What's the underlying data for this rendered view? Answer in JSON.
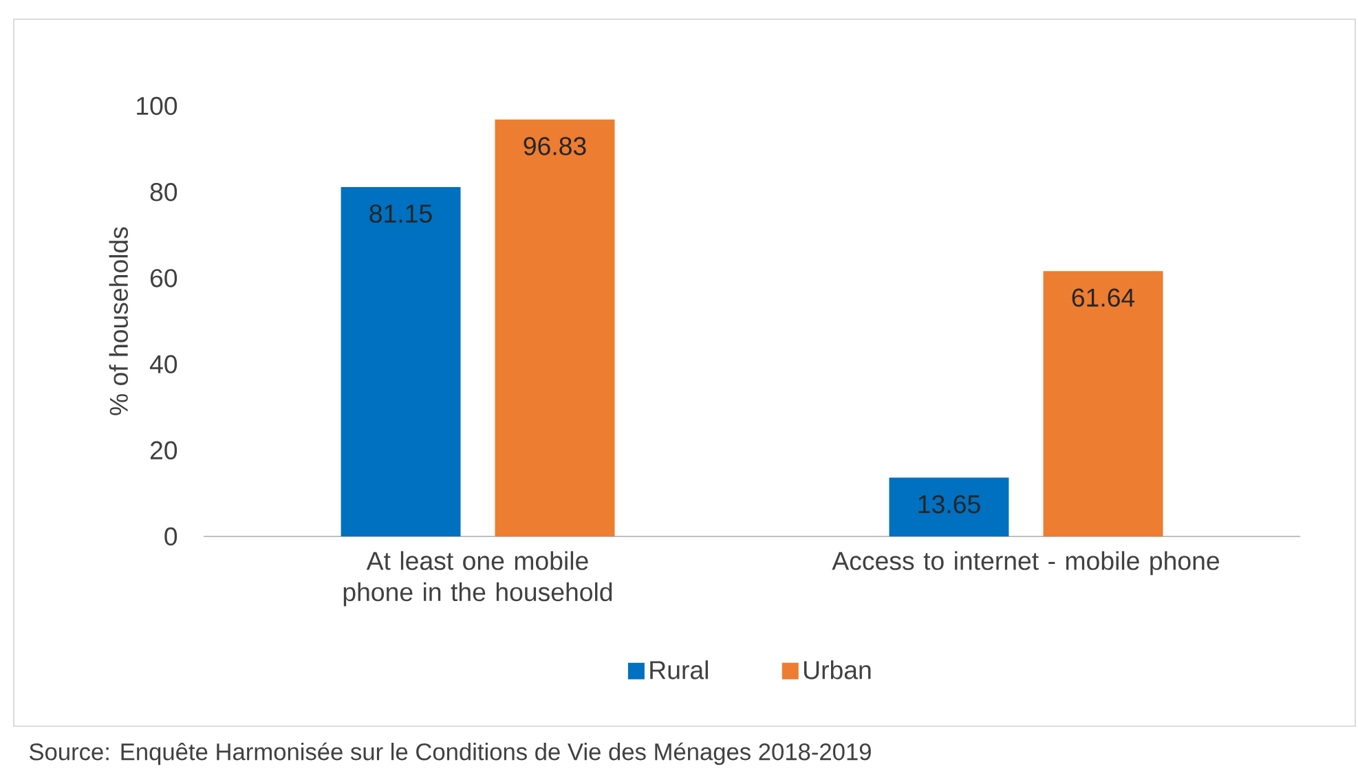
{
  "chart_data": {
    "type": "bar",
    "ylabel": "% of households",
    "categories": [
      "At least one mobile phone in the household",
      "Access to internet - mobile phone"
    ],
    "series": [
      {
        "name": "Rural",
        "color": "#0070c0",
        "values": [
          81.15,
          13.65
        ]
      },
      {
        "name": "Urban",
        "color": "#ed7d31",
        "values": [
          96.83,
          61.64
        ]
      }
    ],
    "ylim": [
      0,
      100
    ],
    "yticks": [
      0,
      20,
      40,
      60,
      80,
      100
    ],
    "data_labels": true,
    "legend": "bottom",
    "grid": false,
    "annotations": [
      "Source: Enquête Harmonisée sur le Conditions de Vie des Ménages 2018-2019"
    ]
  }
}
